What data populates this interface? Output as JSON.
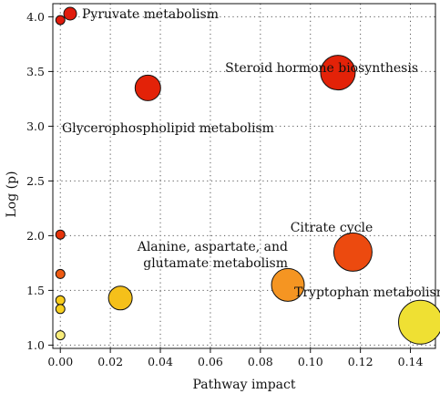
{
  "chart_data": {
    "type": "scatter",
    "title": "",
    "xlabel": "Pathway impact",
    "ylabel": "Log (p)",
    "xlim": [
      -0.003,
      0.15
    ],
    "ylim": [
      0.97,
      4.12
    ],
    "xticks": [
      0.0,
      0.02,
      0.04,
      0.06,
      0.08,
      0.1,
      0.12,
      0.14
    ],
    "xtick_labels": [
      "0.00",
      "0.02",
      "0.04",
      "0.06",
      "0.08",
      "0.10",
      "0.12",
      "0.14"
    ],
    "yticks": [
      1.0,
      1.5,
      2.0,
      2.5,
      3.0,
      3.5,
      4.0
    ],
    "ytick_labels": [
      "1.0",
      "1.5",
      "2.0",
      "2.5",
      "3.0",
      "3.5",
      "4.0"
    ],
    "grid": true,
    "annotations": [
      {
        "text": "Pyruvate metabolism",
        "anchor": "top-left legend-style marker"
      },
      {
        "text": "Steroid hormone biosynthesis"
      },
      {
        "text": "Glycerophospholipid metabolism"
      },
      {
        "text": "Citrate cycle"
      },
      {
        "text": "Alanine, aspartate, and"
      },
      {
        "text": "glutamate metabolism"
      },
      {
        "text": "Tryptophan metabolism"
      }
    ],
    "points": [
      {
        "x": 0.0,
        "y": 3.97,
        "size": 5,
        "color": "#e01b0c"
      },
      {
        "x": 0.035,
        "y": 3.35,
        "size": 14,
        "color": "#e32208"
      },
      {
        "x": 0.111,
        "y": 3.49,
        "size": 19,
        "color": "#e32208"
      },
      {
        "x": 0.0,
        "y": 2.01,
        "size": 5,
        "color": "#e6330a"
      },
      {
        "x": 0.117,
        "y": 1.85,
        "size": 21,
        "color": "#ec4a0f"
      },
      {
        "x": 0.0,
        "y": 1.65,
        "size": 5,
        "color": "#ee5a12"
      },
      {
        "x": 0.091,
        "y": 1.55,
        "size": 18,
        "color": "#f59522"
      },
      {
        "x": 0.024,
        "y": 1.43,
        "size": 13,
        "color": "#f5c01a"
      },
      {
        "x": 0.0,
        "y": 1.41,
        "size": 5,
        "color": "#f8cc1c"
      },
      {
        "x": 0.0,
        "y": 1.33,
        "size": 5,
        "color": "#f8d020"
      },
      {
        "x": 0.144,
        "y": 1.21,
        "size": 24,
        "color": "#efe033"
      },
      {
        "x": 0.0,
        "y": 1.09,
        "size": 5,
        "color": "#f8ec7a"
      }
    ]
  }
}
